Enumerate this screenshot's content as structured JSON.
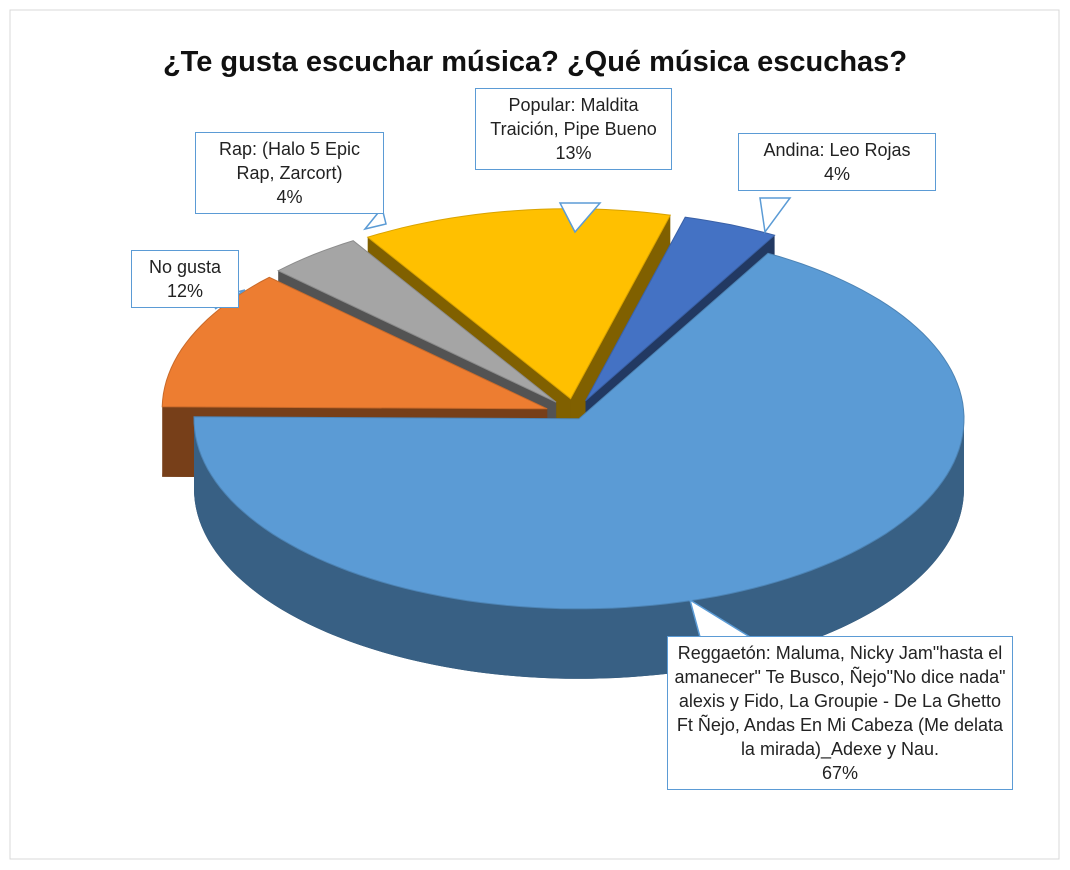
{
  "chart_data": {
    "type": "pie",
    "title": "¿Te gusta escuchar música? ¿Qué música escuchas?",
    "categories": [
      "Andina: Leo Rojas",
      "Reggaetón: Maluma, Nicky Jam\"hasta el amanecer\" Te Busco, Ñejo\"No dice nada\" alexis y Fido, La Groupie - De La Ghetto Ft Ñejo, Andas En Mi Cabeza (Me delata la mirada)_Adexe y Nau.",
      "No gusta",
      "Rap: (Halo 5 Epic Rap, Zarcort)",
      "Popular: Maldita Traición, Pipe Bueno"
    ],
    "values": [
      4,
      67,
      12,
      4,
      13
    ],
    "value_labels": [
      "4%",
      "67%",
      "12%",
      "4%",
      "13%"
    ],
    "colors": [
      "#4472c4",
      "#5b9bd5",
      "#ed7d31",
      "#a5a5a5",
      "#ffc000"
    ]
  }
}
